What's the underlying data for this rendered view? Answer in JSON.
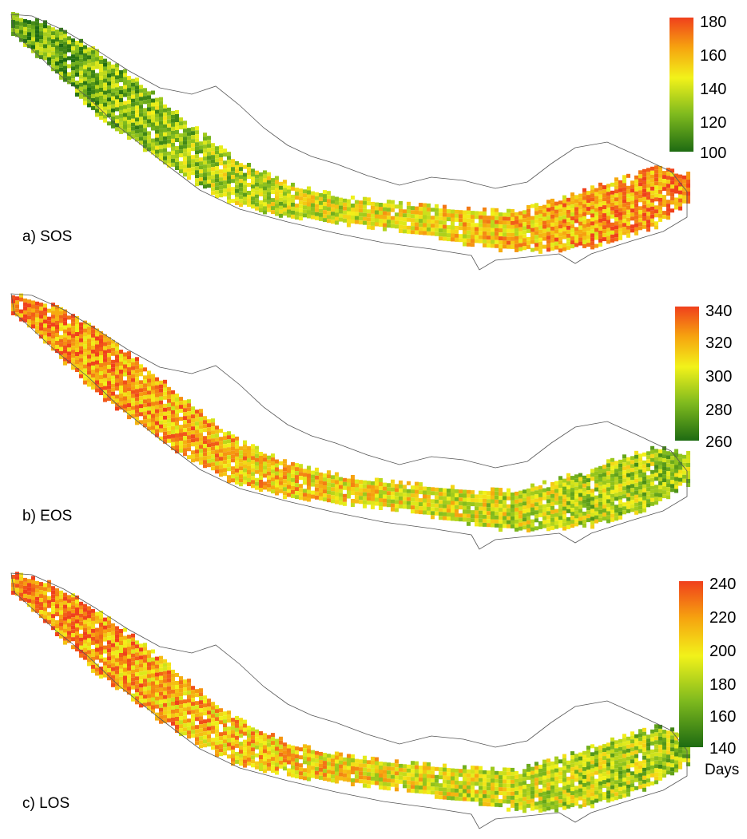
{
  "panels": [
    {
      "label": "a) SOS",
      "colorbar": {
        "min": 100,
        "max": 180,
        "ticks": [
          "180",
          "160",
          "140",
          "120",
          "100"
        ]
      },
      "west_tendency": "low",
      "east_tendency": "high",
      "unit": ""
    },
    {
      "label": "b) EOS",
      "colorbar": {
        "min": 260,
        "max": 340,
        "ticks": [
          "340",
          "320",
          "300",
          "280",
          "260"
        ]
      },
      "west_tendency": "high",
      "east_tendency": "mid-low",
      "unit": ""
    },
    {
      "label": "c) LOS",
      "colorbar": {
        "min": 140,
        "max": 240,
        "ticks": [
          "240",
          "220",
          "200",
          "180",
          "160",
          "140"
        ]
      },
      "west_tendency": "high",
      "east_tendency": "mid-low",
      "unit": "Days"
    }
  ],
  "colors": {
    "scale_low": "#1e6b12",
    "scale_low_mid": "#7fba1e",
    "scale_mid": "#f2f21a",
    "scale_high_mid": "#f6a20f",
    "scale_high": "#f0401c",
    "outline": "#555555"
  }
}
